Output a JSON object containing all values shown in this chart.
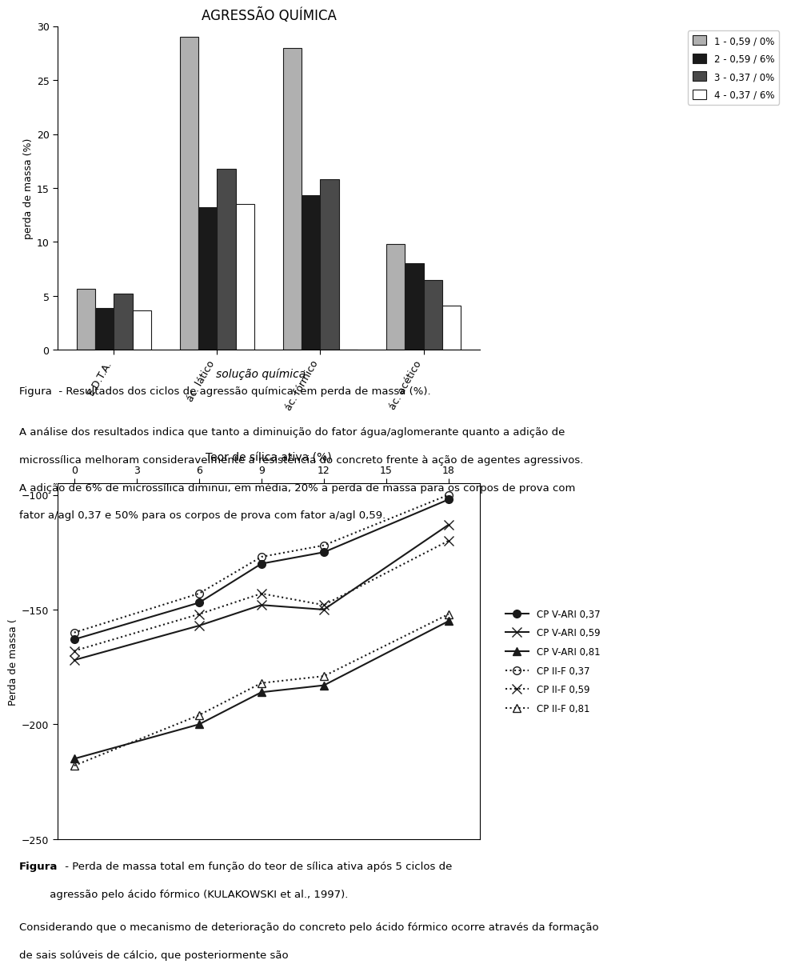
{
  "bar_title": "AGRESSÃO QUÍMICA",
  "bar_ylabel": "perda de massa (%)",
  "bar_xlabel": "solução química",
  "bar_categories": [
    "E.D.T.A.",
    "ác. lático",
    "ác. fórmico",
    "ác. acético"
  ],
  "bar_series_labels": [
    "1 - 0,59 / 0%",
    "2 - 0,59 / 6%",
    "3 - 0,37 / 0%",
    "4 - 0,37 / 6%"
  ],
  "bar_series_values": [
    [
      5.7,
      29.0,
      28.0,
      9.8
    ],
    [
      3.9,
      13.2,
      14.3,
      8.0
    ],
    [
      5.2,
      16.8,
      15.8,
      6.5
    ],
    [
      3.7,
      13.5,
      0.0,
      4.1
    ]
  ],
  "bar_colors": [
    "#b0b0b0",
    "#1a1a1a",
    "#4a4a4a",
    "#ffffff"
  ],
  "bar_ylim": [
    0,
    30
  ],
  "bar_yticks": [
    0,
    5,
    10,
    15,
    20,
    25,
    30
  ],
  "line_xlabel": "Teor de sílica ativa (%)",
  "line_ylabel": "Perda de massa (",
  "line_xticks": [
    0,
    3,
    6,
    9,
    12,
    15,
    18
  ],
  "line_ylim": [
    -250,
    -95
  ],
  "line_yticks": [
    -250,
    -200,
    -150,
    -100
  ],
  "line_names": [
    "CP V-ARI 0,37",
    "CP V-ARI 0,59",
    "CP V-ARI 0,81",
    "CP II-F 0,37",
    "CP II-F 0,59",
    "CP II-F 0,81"
  ],
  "line_x": [
    [
      0,
      6,
      9,
      12,
      18
    ],
    [
      0,
      6,
      9,
      12,
      18
    ],
    [
      0,
      6,
      9,
      12,
      18
    ],
    [
      0,
      6,
      9,
      12,
      18
    ],
    [
      0,
      6,
      9,
      12,
      18
    ],
    [
      0,
      6,
      9,
      12,
      18
    ]
  ],
  "line_y": [
    [
      -163,
      -147,
      -130,
      -125,
      -102
    ],
    [
      -172,
      -157,
      -148,
      -150,
      -113
    ],
    [
      -215,
      -200,
      -186,
      -183,
      -155
    ],
    [
      -160,
      -143,
      -127,
      -122,
      -100
    ],
    [
      -168,
      -152,
      -143,
      -148,
      -120
    ],
    [
      -218,
      -196,
      -182,
      -179,
      -152
    ]
  ],
  "line_styles": [
    "-",
    "-",
    "-",
    ":",
    ":",
    ":"
  ],
  "line_markers": [
    "o",
    "x",
    "^",
    "o",
    "x",
    "^"
  ],
  "fig_caption1": "Figura  - Resultados dos ciclos de agressão química, em perda de massa (%).",
  "body_text1_lines": [
    "A análise dos resultados indica que tanto a diminuição do fator água/aglomerante quanto a adição de",
    "microssílica melhoram consideravelmente a resistência do concreto frente à ação de agentes agressivos.",
    "A adição de 6% de microssílica diminui, em média, 20% a perda de massa para os corpos de prova com",
    "fator a/agl 0,37 e 50% para os corpos de prova com fator a/agl 0,59."
  ],
  "fig_caption2_bold": "Figura",
  "fig_caption2_rest": " - Perda de massa total em função do teor de sílica ativa após 5 ciclos de",
  "fig_caption2_line2": "         agressão pelo ácido fórmico (KULAKOWSKI et al., 1997).",
  "body_text2_lines": [
    "Considerando que o mecanismo de deterioração do concreto pelo ácido fórmico ocorre através da formação",
    "de sais solúveis de cálcio, que posteriormente são"
  ],
  "background": "#ffffff",
  "text_color": "#000000"
}
